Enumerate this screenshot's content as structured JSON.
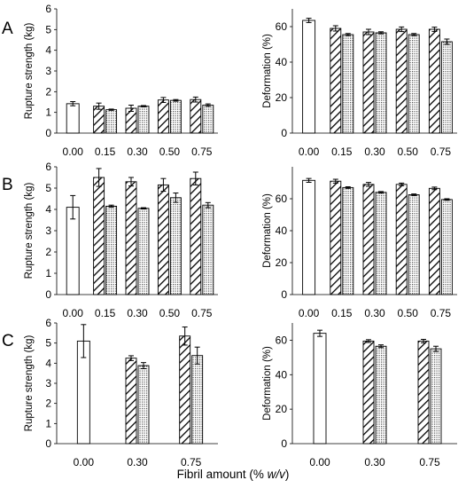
{
  "figure": {
    "footer": {
      "prefix": "Fibril amount (% ",
      "italic": "w/v",
      "suffix": ")"
    },
    "patterns": {
      "hatch": "diagonal-hatch",
      "dots": "dotted-fill",
      "open": "white-fill"
    },
    "colors": {
      "ink": "#000000",
      "paper": "#ffffff",
      "dots": "#555555"
    }
  },
  "chart_data": [
    {
      "id": "A-strength",
      "panel_letter": "A",
      "type": "bar",
      "categories": [
        "0.00",
        "0.15",
        "0.30",
        "0.50",
        "0.75"
      ],
      "ylabel": "Rupture strength (kg)",
      "ylim": [
        0,
        6
      ],
      "yticks": [
        0,
        1,
        2,
        3,
        4,
        5,
        6
      ],
      "grid": false,
      "bars": [
        {
          "category": "0.00",
          "style": "open",
          "value": 1.42,
          "error": 0.1
        },
        {
          "category": "0.15",
          "style": "hatch",
          "value": 1.3,
          "error": 0.15
        },
        {
          "category": "0.15",
          "style": "dots",
          "value": 1.13,
          "error": 0.03
        },
        {
          "category": "0.30",
          "style": "hatch",
          "value": 1.2,
          "error": 0.15
        },
        {
          "category": "0.30",
          "style": "dots",
          "value": 1.3,
          "error": 0.03
        },
        {
          "category": "0.50",
          "style": "hatch",
          "value": 1.6,
          "error": 0.12
        },
        {
          "category": "0.50",
          "style": "dots",
          "value": 1.58,
          "error": 0.04
        },
        {
          "category": "0.75",
          "style": "hatch",
          "value": 1.62,
          "error": 0.12
        },
        {
          "category": "0.75",
          "style": "dots",
          "value": 1.35,
          "error": 0.06
        }
      ]
    },
    {
      "id": "A-deformation",
      "type": "bar",
      "categories": [
        "0.00",
        "0.15",
        "0.30",
        "0.50",
        "0.75"
      ],
      "ylabel": "Deformation (%)",
      "ylim": [
        0,
        70
      ],
      "yticks": [
        0,
        20,
        40,
        60
      ],
      "grid": false,
      "bars": [
        {
          "category": "0.00",
          "style": "open",
          "value": 63.5,
          "error": 1.2
        },
        {
          "category": "0.15",
          "style": "hatch",
          "value": 59,
          "error": 1.5
        },
        {
          "category": "0.15",
          "style": "dots",
          "value": 55.5,
          "error": 0.6
        },
        {
          "category": "0.30",
          "style": "hatch",
          "value": 57,
          "error": 1.5
        },
        {
          "category": "0.30",
          "style": "dots",
          "value": 56.5,
          "error": 0.6
        },
        {
          "category": "0.50",
          "style": "hatch",
          "value": 58.5,
          "error": 1.3
        },
        {
          "category": "0.50",
          "style": "dots",
          "value": 55.5,
          "error": 0.6
        },
        {
          "category": "0.75",
          "style": "hatch",
          "value": 58.5,
          "error": 1.2
        },
        {
          "category": "0.75",
          "style": "dots",
          "value": 51.5,
          "error": 1.5
        }
      ]
    },
    {
      "id": "B-strength",
      "panel_letter": "B",
      "type": "bar",
      "categories": [
        "0.00",
        "0.15",
        "0.30",
        "0.50",
        "0.75"
      ],
      "ylabel": "Rupture strength (kg)",
      "ylim": [
        0,
        6
      ],
      "yticks": [
        0,
        1,
        2,
        3,
        4,
        5,
        6
      ],
      "grid": false,
      "bars": [
        {
          "category": "0.00",
          "style": "open",
          "value": 4.1,
          "error": 0.55
        },
        {
          "category": "0.15",
          "style": "hatch",
          "value": 5.5,
          "error": 0.42
        },
        {
          "category": "0.15",
          "style": "dots",
          "value": 4.15,
          "error": 0.05
        },
        {
          "category": "0.30",
          "style": "hatch",
          "value": 5.3,
          "error": 0.2
        },
        {
          "category": "0.30",
          "style": "dots",
          "value": 4.05,
          "error": 0.03
        },
        {
          "category": "0.50",
          "style": "hatch",
          "value": 5.15,
          "error": 0.3
        },
        {
          "category": "0.50",
          "style": "dots",
          "value": 4.55,
          "error": 0.22
        },
        {
          "category": "0.75",
          "style": "hatch",
          "value": 5.45,
          "error": 0.3
        },
        {
          "category": "0.75",
          "style": "dots",
          "value": 4.2,
          "error": 0.12
        }
      ]
    },
    {
      "id": "B-deformation",
      "type": "bar",
      "categories": [
        "0.00",
        "0.15",
        "0.30",
        "0.50",
        "0.75"
      ],
      "ylabel": "Deformation (%)",
      "ylim": [
        0,
        80
      ],
      "yticks": [
        0,
        20,
        40,
        60
      ],
      "grid": false,
      "bars": [
        {
          "category": "0.00",
          "style": "open",
          "value": 71.5,
          "error": 1.2
        },
        {
          "category": "0.15",
          "style": "hatch",
          "value": 71,
          "error": 1.2
        },
        {
          "category": "0.15",
          "style": "dots",
          "value": 67,
          "error": 0.5
        },
        {
          "category": "0.30",
          "style": "hatch",
          "value": 69,
          "error": 1.2
        },
        {
          "category": "0.30",
          "style": "dots",
          "value": 64,
          "error": 0.5
        },
        {
          "category": "0.50",
          "style": "hatch",
          "value": 69,
          "error": 0.8
        },
        {
          "category": "0.50",
          "style": "dots",
          "value": 62.5,
          "error": 0.5
        },
        {
          "category": "0.75",
          "style": "hatch",
          "value": 66.5,
          "error": 0.8
        },
        {
          "category": "0.75",
          "style": "dots",
          "value": 59.5,
          "error": 0.5
        }
      ]
    },
    {
      "id": "C-strength",
      "panel_letter": "C",
      "type": "bar",
      "categories": [
        "0.00",
        "0.30",
        "0.75"
      ],
      "ylabel": "Rupture strength (kg)",
      "ylim": [
        0,
        6
      ],
      "yticks": [
        0,
        1,
        2,
        3,
        4,
        5,
        6
      ],
      "grid": false,
      "bars": [
        {
          "category": "0.00",
          "style": "open",
          "value": 5.1,
          "error": 0.82
        },
        {
          "category": "0.30",
          "style": "hatch",
          "value": 4.25,
          "error": 0.12
        },
        {
          "category": "0.30",
          "style": "dots",
          "value": 3.88,
          "error": 0.15
        },
        {
          "category": "0.75",
          "style": "hatch",
          "value": 5.35,
          "error": 0.45
        },
        {
          "category": "0.75",
          "style": "dots",
          "value": 4.38,
          "error": 0.42
        }
      ]
    },
    {
      "id": "C-deformation",
      "type": "bar",
      "categories": [
        "0.00",
        "0.30",
        "0.75"
      ],
      "ylabel": "Deformation (%)",
      "ylim": [
        0,
        70
      ],
      "yticks": [
        0,
        20,
        40,
        60
      ],
      "grid": false,
      "bars": [
        {
          "category": "0.00",
          "style": "open",
          "value": 64,
          "error": 1.8
        },
        {
          "category": "0.30",
          "style": "hatch",
          "value": 59.5,
          "error": 0.8
        },
        {
          "category": "0.30",
          "style": "dots",
          "value": 56.5,
          "error": 0.8
        },
        {
          "category": "0.75",
          "style": "hatch",
          "value": 59.5,
          "error": 1.0
        },
        {
          "category": "0.75",
          "style": "dots",
          "value": 55,
          "error": 1.5
        }
      ]
    }
  ]
}
